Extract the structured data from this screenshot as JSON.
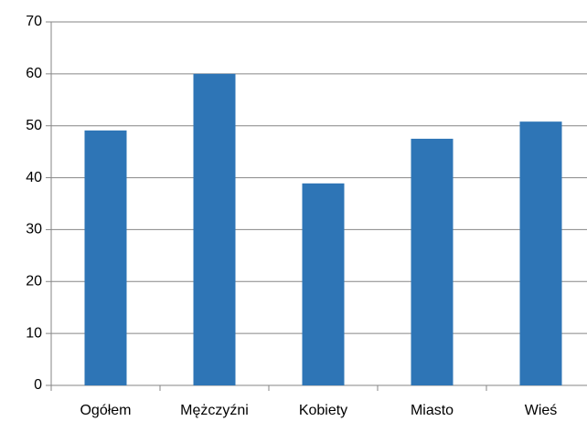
{
  "chart_data": {
    "type": "bar",
    "categories": [
      "Ogółem",
      "Mężczyźni",
      "Kobiety",
      "Miasto",
      "Wieś"
    ],
    "values": [
      49.1,
      60,
      38.9,
      47.5,
      50.8
    ],
    "color": "#2e75b6",
    "ylim": [
      0,
      70
    ],
    "yticks": [
      0,
      10,
      20,
      30,
      40,
      50,
      60,
      70
    ],
    "grid": true
  }
}
